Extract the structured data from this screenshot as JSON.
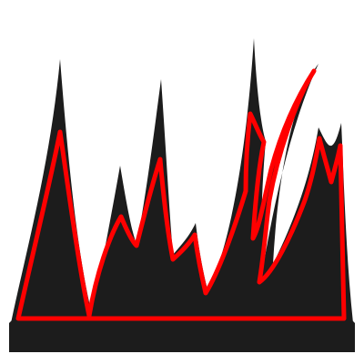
{
  "scene": {
    "subject": "stylized-black-flames",
    "colors": {
      "background": "#ffffff",
      "flame_fill": "#1c1c1c",
      "flame_outline": "#ff0000",
      "base_top": "#1c1c1c",
      "base_front": "#1c1c1c"
    }
  }
}
